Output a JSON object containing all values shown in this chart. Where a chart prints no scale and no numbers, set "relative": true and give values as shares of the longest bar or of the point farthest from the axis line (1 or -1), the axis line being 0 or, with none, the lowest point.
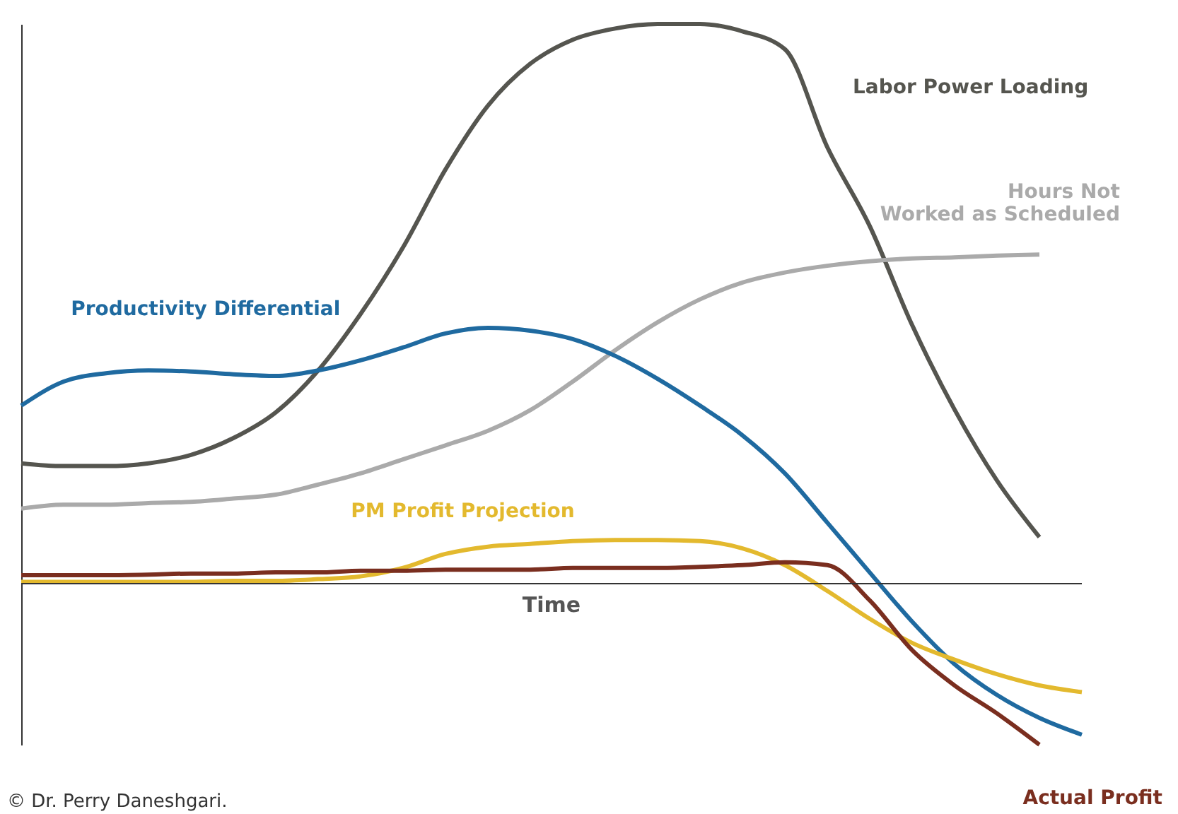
{
  "chart_data": {
    "type": "line",
    "relative": true,
    "xlabel": "Time",
    "legend": false,
    "grid": false,
    "categories": [
      null,
      null,
      null,
      null,
      null,
      null,
      null,
      null,
      null,
      null,
      null,
      null,
      null,
      null,
      null,
      null,
      null,
      null,
      null,
      null,
      null,
      null,
      null,
      null,
      null,
      null
    ],
    "series": [
      {
        "name": "Labor Power Loading",
        "color": "#55554f",
        "values": [
          0.215,
          0.21,
          0.21,
          0.215,
          0.23,
          0.26,
          0.306,
          0.381,
          0.482,
          0.601,
          0.74,
          0.854,
          0.929,
          0.972,
          0.992,
          1,
          1,
          0.987,
          0.955,
          0.78,
          0.639,
          0.462,
          0.311,
          0.184,
          0.083,
          null
        ]
      },
      {
        "name": "Hours Not Worked as Scheduled",
        "color": "#aaaaaa",
        "values": [
          0.134,
          0.141,
          0.141,
          0.144,
          0.146,
          0.152,
          0.159,
          0.177,
          0.197,
          0.222,
          0.247,
          0.273,
          0.31,
          0.361,
          0.417,
          0.467,
          0.508,
          0.538,
          0.556,
          0.568,
          0.576,
          0.581,
          0.583,
          0.586,
          0.588,
          null
        ]
      },
      {
        "name": "Productivity Differential",
        "color": "#1f6aa0",
        "values": [
          0.318,
          0.361,
          0.376,
          0.381,
          0.379,
          0.374,
          0.371,
          0.381,
          0.399,
          0.422,
          0.447,
          0.457,
          0.452,
          0.437,
          0.407,
          0.366,
          0.318,
          0.265,
          0.197,
          0.109,
          0.02,
          -0.068,
          -0.144,
          -0.199,
          -0.24,
          -0.27
        ]
      },
      {
        "name": "PM Profit Projection",
        "color": "#e3b92e",
        "values": [
          0.003,
          0.003,
          0.003,
          0.003,
          0.003,
          0.005,
          0.005,
          0.008,
          0.013,
          0.028,
          0.053,
          0.066,
          0.071,
          0.076,
          0.078,
          0.078,
          0.076,
          0.063,
          0.033,
          -0.013,
          -0.063,
          -0.106,
          -0.136,
          -0.162,
          -0.182,
          -0.194
        ]
      },
      {
        "name": "Actual Profit",
        "color": "#7a2e1f",
        "values": [
          0.015,
          0.015,
          0.015,
          0.016,
          0.018,
          0.018,
          0.02,
          0.02,
          0.023,
          0.023,
          0.025,
          0.025,
          0.025,
          0.028,
          0.028,
          0.028,
          0.03,
          0.033,
          0.038,
          0.033,
          -0.03,
          -0.119,
          -0.182,
          -0.232,
          -0.288,
          null
        ]
      }
    ],
    "annotations": [
      "© Dr. Perry Daneshgari."
    ]
  }
}
